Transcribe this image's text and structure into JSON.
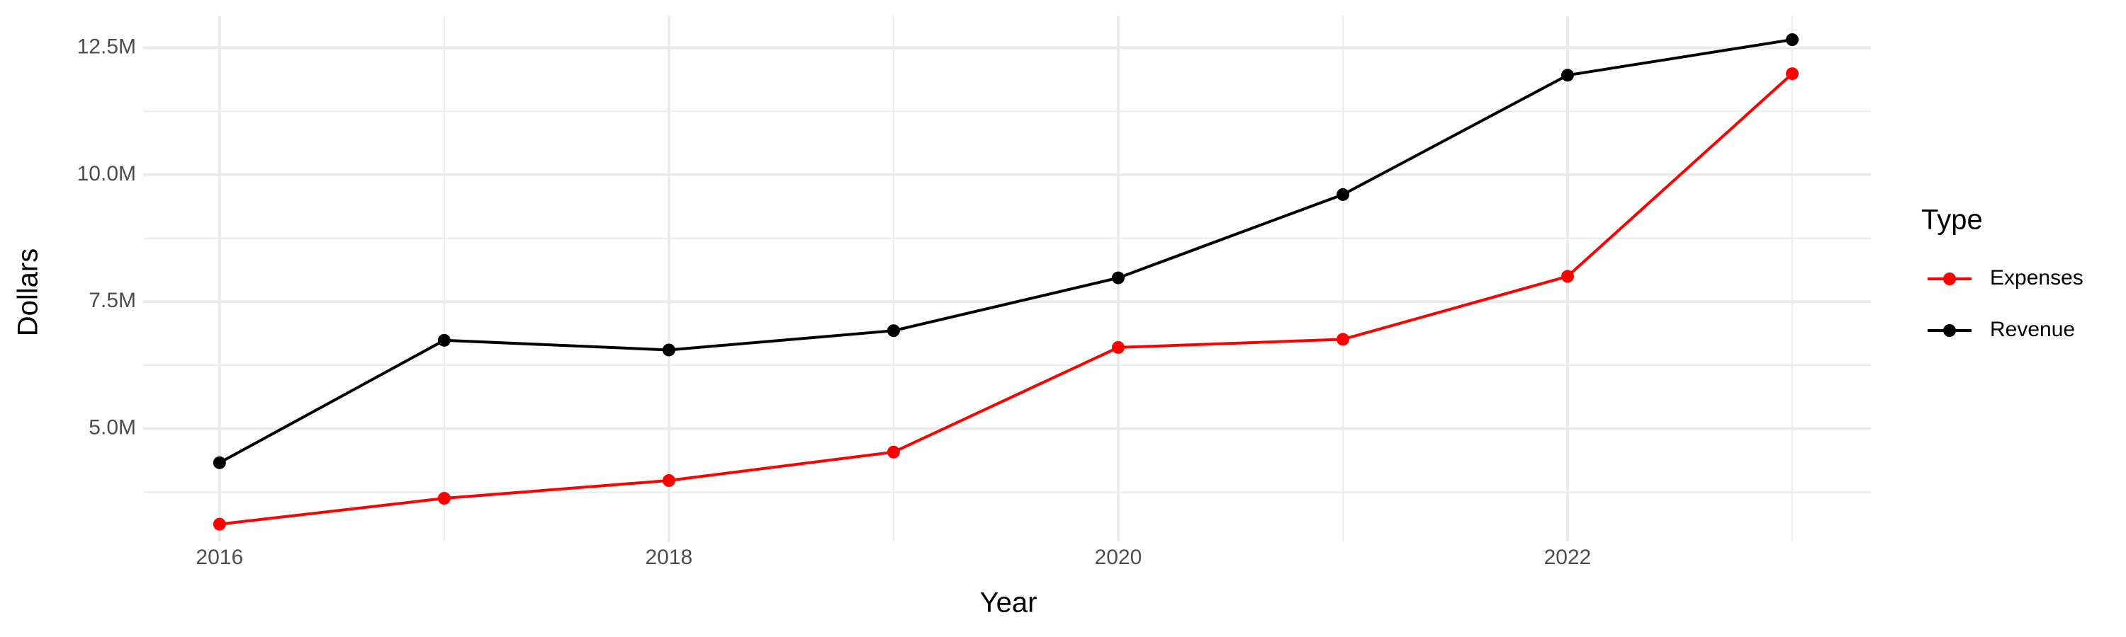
{
  "chart_data": {
    "type": "line",
    "x_label": "Year",
    "y_label": "Dollars",
    "x": [
      2016,
      2017,
      2018,
      2019,
      2020,
      2021,
      2022,
      2023
    ],
    "series": [
      {
        "name": "Expenses",
        "color": "#ff0000",
        "values": [
          3120000,
          3630000,
          3980000,
          4540000,
          6600000,
          6760000,
          8000000,
          11990000
        ]
      },
      {
        "name": "Revenue",
        "color": "#000000",
        "values": [
          4330000,
          6740000,
          6550000,
          6930000,
          7970000,
          9610000,
          11960000,
          12660000
        ]
      }
    ],
    "xlim": [
      2015.66,
      2023.35
    ],
    "xticks": [
      2016,
      2018,
      2020,
      2022
    ],
    "ylim": [
      2780000,
      13120000
    ],
    "yticks": [
      {
        "value": 5000000,
        "label": "5.0M"
      },
      {
        "value": 7500000,
        "label": "7.5M"
      },
      {
        "value": 10000000,
        "label": "10.0M"
      },
      {
        "value": 12500000,
        "label": "12.5M"
      }
    ],
    "grid": true,
    "legend_title": "Type",
    "legend_position": "right"
  }
}
